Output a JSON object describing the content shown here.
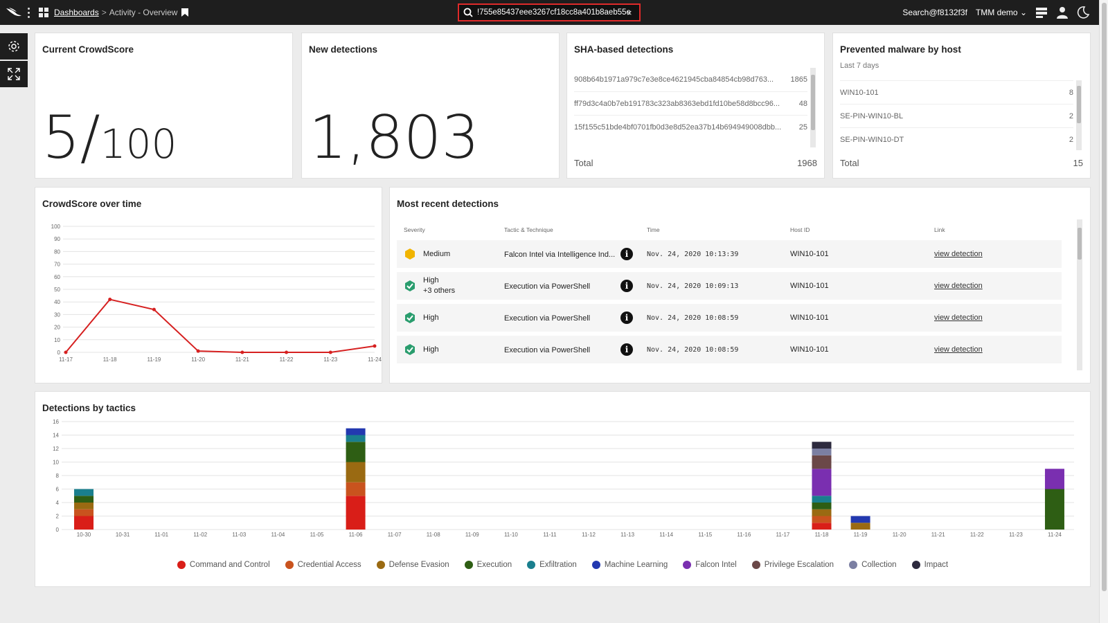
{
  "header": {
    "breadcrumb_link": "Dashboards",
    "breadcrumb_sep": ">",
    "breadcrumb_current": "Activity - Overview",
    "search_value": "!755e85437eee3267cf18cc8a401b8aeb55e",
    "clear": "×",
    "user": "Search@f8132f3f",
    "org": "TMM demo"
  },
  "cards": {
    "crowdscore": {
      "title": "Current CrowdScore",
      "value": "5",
      "slash": "/",
      "max": "100"
    },
    "new_detections": {
      "title": "New detections",
      "value": "1,803"
    },
    "sha": {
      "title": "SHA-based detections",
      "rows": [
        {
          "hash": "908b64b1971a979c7e3e8ce4621945cba84854cb98d763...",
          "count": "1865"
        },
        {
          "hash": "ff79d3c4a0b7eb191783c323ab8363ebd1fd10be58d8bcc96...",
          "count": "48"
        },
        {
          "hash": "15f155c51bde4bf0701fb0d3e8d52ea37b14b694949008dbb...",
          "count": "25"
        }
      ],
      "total_label": "Total",
      "total_value": "1968"
    },
    "malware": {
      "title": "Prevented malware by host",
      "subtitle": "Last 7 days",
      "rows": [
        {
          "host": "WIN10-101",
          "count": "8"
        },
        {
          "host": "SE-PIN-WIN10-BL",
          "count": "2"
        },
        {
          "host": "SE-PIN-WIN10-DT",
          "count": "2"
        }
      ],
      "total_label": "Total",
      "total_value": "15"
    },
    "crowdscore_time": {
      "title": "CrowdScore over time"
    },
    "recent": {
      "title": "Most recent detections",
      "columns": [
        "Severity",
        "Tactic & Technique",
        "Time",
        "Host ID",
        "Link"
      ],
      "rows": [
        {
          "severity": "Medium",
          "extra": "",
          "tactic": "Falcon Intel via Intelligence Ind...",
          "time": "Nov. 24, 2020 10:13:39",
          "host": "WIN10-101",
          "link": "view detection"
        },
        {
          "severity": "High",
          "extra": "+3 others",
          "tactic": "Execution via PowerShell",
          "time": "Nov. 24, 2020 10:09:13",
          "host": "WIN10-101",
          "link": "view detection"
        },
        {
          "severity": "High",
          "extra": "",
          "tactic": "Execution via PowerShell",
          "time": "Nov. 24, 2020 10:08:59",
          "host": "WIN10-101",
          "link": "view detection"
        },
        {
          "severity": "High",
          "extra": "",
          "tactic": "Execution via PowerShell",
          "time": "Nov. 24, 2020 10:08:59",
          "host": "WIN10-101",
          "link": "view detection"
        }
      ]
    },
    "tactics": {
      "title": "Detections by tactics"
    }
  },
  "colors": {
    "line": "#d62020",
    "medium": "#f1b400",
    "high": "#2a9d6e"
  },
  "chart_data": [
    {
      "type": "line",
      "title": "CrowdScore over time",
      "x": [
        "11-17",
        "11-18",
        "11-19",
        "11-20",
        "11-21",
        "11-22",
        "11-23",
        "11-24"
      ],
      "series": [
        {
          "values": [
            0,
            42,
            34,
            1,
            0,
            0,
            0,
            5
          ]
        }
      ],
      "ylim": [
        0,
        100
      ],
      "yticks": [
        0,
        10,
        20,
        30,
        40,
        50,
        60,
        70,
        80,
        90,
        100
      ],
      "grid": true
    },
    {
      "type": "bar",
      "stacked": true,
      "title": "Detections by tactics",
      "categories": [
        "10-30",
        "10-31",
        "11-01",
        "11-02",
        "11-03",
        "11-04",
        "11-05",
        "11-06",
        "11-07",
        "11-08",
        "11-09",
        "11-10",
        "11-11",
        "11-12",
        "11-13",
        "11-14",
        "11-15",
        "11-16",
        "11-17",
        "11-18",
        "11-19",
        "11-20",
        "11-21",
        "11-22",
        "11-23",
        "11-24"
      ],
      "ylim": [
        0,
        16
      ],
      "yticks": [
        0,
        2,
        4,
        6,
        8,
        10,
        12,
        14,
        16
      ],
      "legend_position": "bottom",
      "series": [
        {
          "name": "Command and Control",
          "color": "#d91e18",
          "values": [
            2,
            0,
            0,
            0,
            0,
            0,
            0,
            5,
            0,
            0,
            0,
            0,
            0,
            0,
            0,
            0,
            0,
            0,
            0,
            1,
            0,
            0,
            0,
            0,
            0,
            0
          ]
        },
        {
          "name": "Credential Access",
          "color": "#c9531e",
          "values": [
            1,
            0,
            0,
            0,
            0,
            0,
            0,
            2,
            0,
            0,
            0,
            0,
            0,
            0,
            0,
            0,
            0,
            0,
            0,
            1,
            0,
            0,
            0,
            0,
            0,
            0
          ]
        },
        {
          "name": "Defense Evasion",
          "color": "#9a6a12",
          "values": [
            1,
            0,
            0,
            0,
            0,
            0,
            0,
            3,
            0,
            0,
            0,
            0,
            0,
            0,
            0,
            0,
            0,
            0,
            0,
            1,
            1,
            0,
            0,
            0,
            0,
            0
          ]
        },
        {
          "name": "Execution",
          "color": "#2e5e14",
          "values": [
            1,
            0,
            0,
            0,
            0,
            0,
            0,
            3,
            0,
            0,
            0,
            0,
            0,
            0,
            0,
            0,
            0,
            0,
            0,
            1,
            0,
            0,
            0,
            0,
            0,
            6
          ]
        },
        {
          "name": "Exfiltration",
          "color": "#1a7f8e",
          "values": [
            1,
            0,
            0,
            0,
            0,
            0,
            0,
            1,
            0,
            0,
            0,
            0,
            0,
            0,
            0,
            0,
            0,
            0,
            0,
            1,
            0,
            0,
            0,
            0,
            0,
            0
          ]
        },
        {
          "name": "Machine Learning",
          "color": "#2339b0",
          "values": [
            0,
            0,
            0,
            0,
            0,
            0,
            0,
            1,
            0,
            0,
            0,
            0,
            0,
            0,
            0,
            0,
            0,
            0,
            0,
            0,
            1,
            0,
            0,
            0,
            0,
            0
          ]
        },
        {
          "name": "Falcon Intel",
          "color": "#7a2fb0",
          "values": [
            0,
            0,
            0,
            0,
            0,
            0,
            0,
            0,
            0,
            0,
            0,
            0,
            0,
            0,
            0,
            0,
            0,
            0,
            0,
            4,
            0,
            0,
            0,
            0,
            0,
            3
          ]
        },
        {
          "name": "Privilege Escalation",
          "color": "#6b4848",
          "values": [
            0,
            0,
            0,
            0,
            0,
            0,
            0,
            0,
            0,
            0,
            0,
            0,
            0,
            0,
            0,
            0,
            0,
            0,
            0,
            2,
            0,
            0,
            0,
            0,
            0,
            0
          ]
        },
        {
          "name": "Collection",
          "color": "#7b7fa2",
          "values": [
            0,
            0,
            0,
            0,
            0,
            0,
            0,
            0,
            0,
            0,
            0,
            0,
            0,
            0,
            0,
            0,
            0,
            0,
            0,
            1,
            0,
            0,
            0,
            0,
            0,
            0
          ]
        },
        {
          "name": "Impact",
          "color": "#2d2a3e",
          "values": [
            0,
            0,
            0,
            0,
            0,
            0,
            0,
            0,
            0,
            0,
            0,
            0,
            0,
            0,
            0,
            0,
            0,
            0,
            0,
            1,
            0,
            0,
            0,
            0,
            0,
            0
          ]
        }
      ]
    }
  ]
}
